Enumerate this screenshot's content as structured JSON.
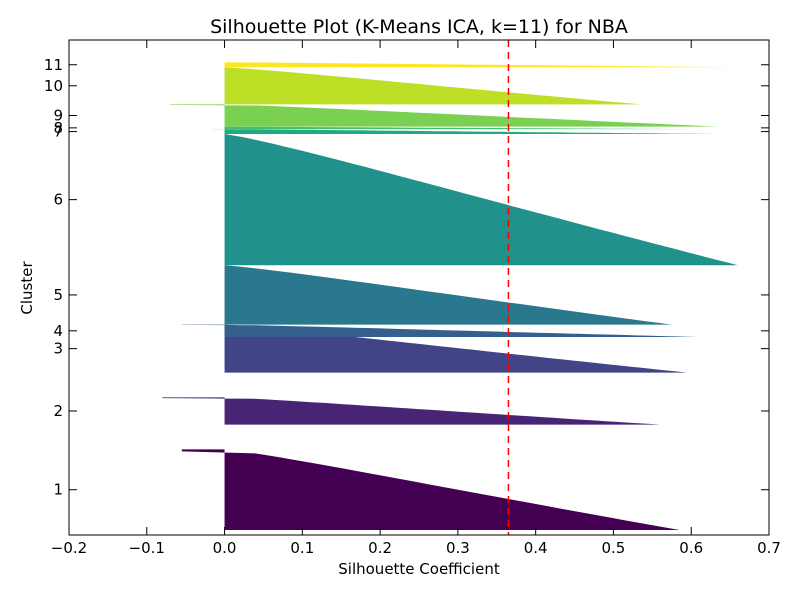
{
  "chart_data": {
    "type": "area",
    "title": "Silhouette Plot (K-Means ICA, k=11) for NBA",
    "xlabel": "Silhouette Coefficient",
    "ylabel": "Cluster",
    "xlim": [
      -0.2,
      0.7
    ],
    "x_ticks": [
      -0.2,
      -0.1,
      0.0,
      0.1,
      0.2,
      0.3,
      0.4,
      0.5,
      0.6,
      0.7
    ],
    "x_tick_labels": [
      "−0.2",
      "−0.1",
      "0.0",
      "0.1",
      "0.2",
      "0.3",
      "0.4",
      "0.5",
      "0.6",
      "0.7"
    ],
    "ylim": [
      0,
      1000
    ],
    "grid": false,
    "legend": "none",
    "average_silhouette": 0.365,
    "average_line_color": "#ff0000",
    "series": [
      {
        "label": "1",
        "color": "#440154",
        "y_start": 10,
        "y_end": 173,
        "max": 0.585,
        "min": -0.055
      },
      {
        "label": "2",
        "color": "#482475",
        "y_start": 223,
        "y_end": 278,
        "max": 0.56,
        "min": -0.08
      },
      {
        "label": "3",
        "color": "#414487",
        "y_start": 328,
        "y_end": 425,
        "max": 0.595,
        "min": 0.0
      },
      {
        "label": "4",
        "color": "#355f8d",
        "y_start": 400,
        "y_end": 425,
        "max": 0.61,
        "min": -0.055
      },
      {
        "label": "5",
        "color": "#2a788e",
        "y_start": 425,
        "y_end": 545,
        "max": 0.575,
        "min": 0.0
      },
      {
        "label": "6",
        "color": "#21918c",
        "y_start": 545,
        "y_end": 810,
        "max": 0.66,
        "min": 0.0
      },
      {
        "label": "7",
        "color": "#22a884",
        "y_start": 810,
        "y_end": 820,
        "max": 0.635,
        "min": -0.015
      },
      {
        "label": "8",
        "color": "#44bf70",
        "y_start": 820,
        "y_end": 825,
        "max": 0.6,
        "min": 0.0
      },
      {
        "label": "9",
        "color": "#7ad151",
        "y_start": 825,
        "y_end": 870,
        "max": 0.635,
        "min": -0.07
      },
      {
        "label": "10",
        "color": "#bddf26",
        "y_start": 870,
        "y_end": 945,
        "max": 0.535,
        "min": 0.0
      },
      {
        "label": "11",
        "color": "#fde725",
        "y_start": 945,
        "y_end": 955,
        "max": 0.66,
        "min": 0.0
      }
    ]
  }
}
